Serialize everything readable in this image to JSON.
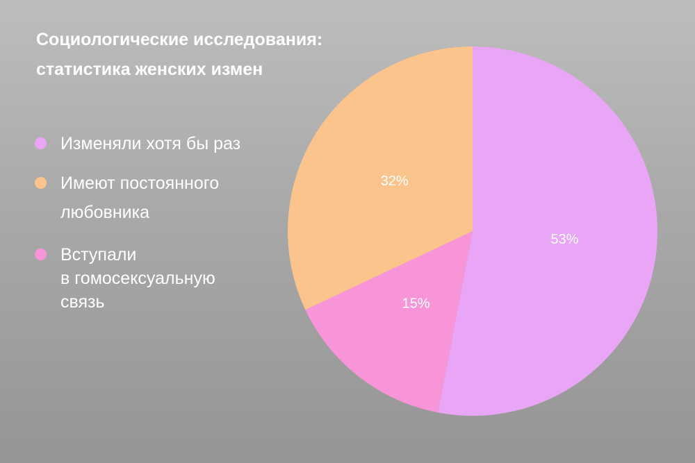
{
  "title": {
    "line1": "Социологические исследования:",
    "line2": "статистика женских измен"
  },
  "legend": [
    {
      "lines": [
        "Изменяли хотя бы раз"
      ],
      "color": "#eaa6f6"
    },
    {
      "lines": [
        "Имеют постоянного",
        "любовника"
      ],
      "color": "#fbc48c"
    },
    {
      "lines": [
        "Вступали",
        "в гомосексуальную",
        "связь"
      ],
      "color": "#f795d8"
    }
  ],
  "chart_data": {
    "type": "pie",
    "title": "Социологические исследования: статистика женских измен",
    "legend_position": "left",
    "slices": [
      {
        "label": "Изменяли хотя бы раз",
        "value": 53,
        "display": "53%",
        "color": "#eaa6f6"
      },
      {
        "label": "Вступали в гомосексуальную связь",
        "value": 15,
        "display": "15%",
        "color": "#f795d8"
      },
      {
        "label": "Имеют постоянного любовника",
        "value": 32,
        "display": "32%",
        "color": "#fbc48c"
      }
    ]
  }
}
